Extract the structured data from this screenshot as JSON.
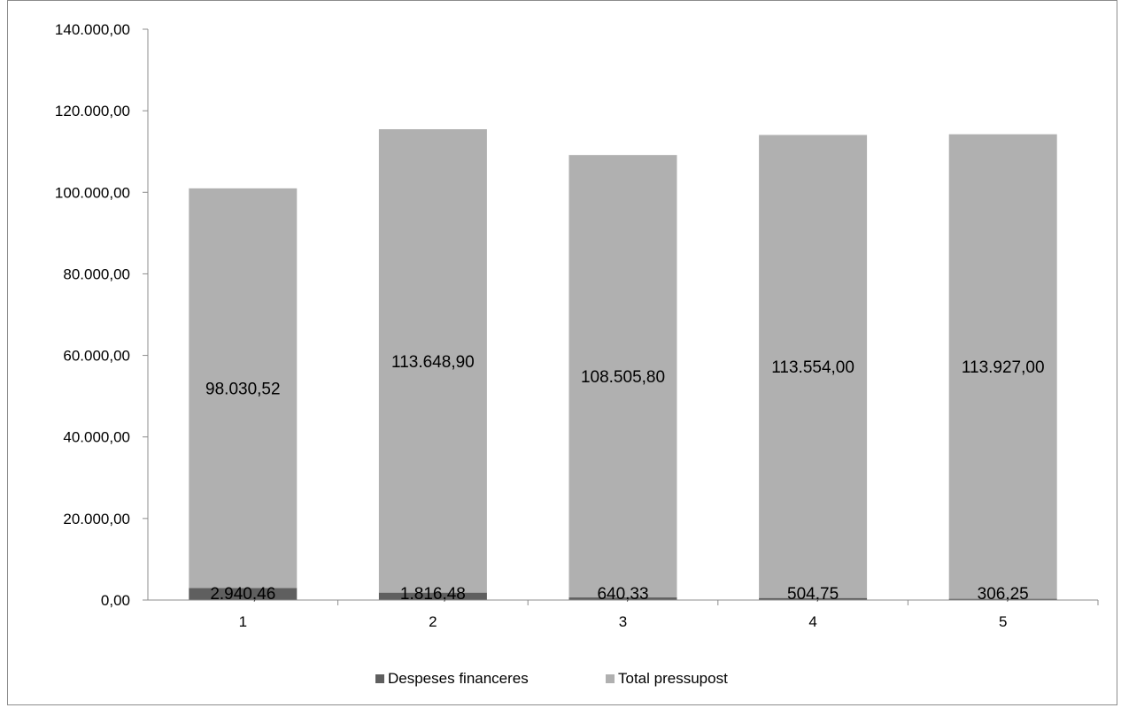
{
  "chart_data": {
    "type": "bar",
    "stacked": true,
    "categories": [
      "1",
      "2",
      "3",
      "4",
      "5"
    ],
    "series": [
      {
        "name": "Despeses financeres",
        "color": "#5f5f5f",
        "values": [
          2940.46,
          1816.48,
          640.33,
          504.75,
          306.25
        ],
        "labels": [
          "2.940,46",
          "1.816,48",
          "640,33",
          "504,75",
          "306,25"
        ]
      },
      {
        "name": "Total pressupost",
        "color": "#b0b0b0",
        "values": [
          98030.52,
          113648.9,
          108505.8,
          113554.0,
          113927.0
        ],
        "labels": [
          "98.030,52",
          "113.648,90",
          "108.505,80",
          "113.554,00",
          "113.927,00"
        ]
      }
    ],
    "ylim": [
      0,
      140000
    ],
    "yticks": [
      0,
      20000,
      40000,
      60000,
      80000,
      100000,
      120000,
      140000
    ],
    "ytick_labels": [
      "0,00",
      "20.000,00",
      "40.000,00",
      "60.000,00",
      "80.000,00",
      "100.000,00",
      "120.000,00",
      "140.000,00"
    ],
    "title": "",
    "xlabel": "",
    "ylabel": "",
    "grid": false,
    "legend_position": "bottom"
  }
}
